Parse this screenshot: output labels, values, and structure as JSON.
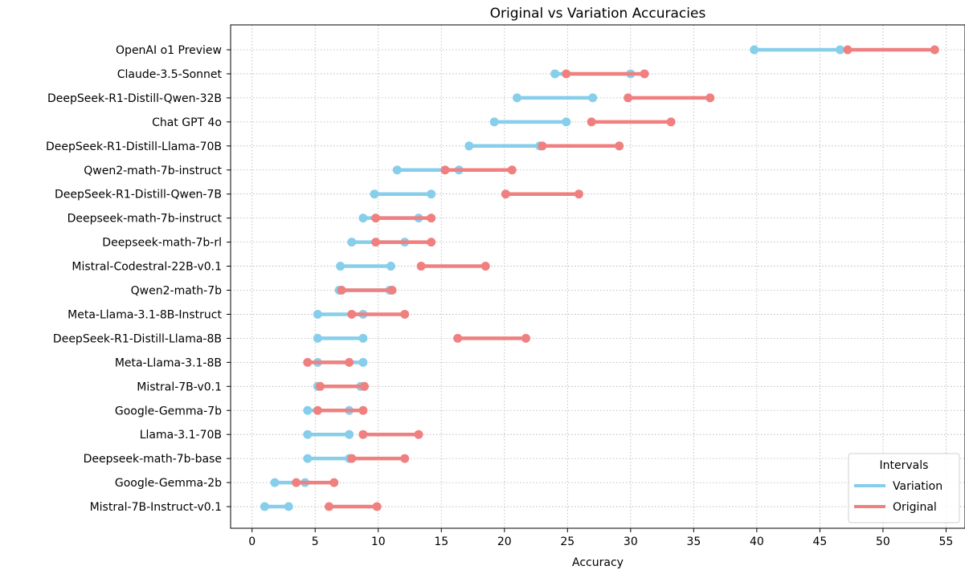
{
  "chart_data": {
    "type": "dumbbell",
    "title": "Original vs Variation Accuracies",
    "xlabel": "Accuracy",
    "ylabel": "",
    "xlim": [
      -1.7,
      56.5
    ],
    "xticks": [
      0,
      5,
      10,
      15,
      20,
      25,
      30,
      35,
      40,
      45,
      50,
      55
    ],
    "grid": true,
    "legend": {
      "title": "Intervals",
      "placement": "bottom-right",
      "entries": [
        "Variation",
        "Original"
      ]
    },
    "series": [
      {
        "name": "Variation",
        "color": "#87ceeb"
      },
      {
        "name": "Original",
        "color": "#f08080"
      }
    ],
    "categories": [
      "OpenAI o1 Preview",
      "Claude-3.5-Sonnet",
      "DeepSeek-R1-Distill-Qwen-32B",
      "Chat GPT 4o",
      "DeepSeek-R1-Distill-Llama-70B",
      "Qwen2-math-7b-instruct",
      "DeepSeek-R1-Distill-Qwen-7B",
      "Deepseek-math-7b-instruct",
      "Deepseek-math-7b-rl",
      "Mistral-Codestral-22B-v0.1",
      "Qwen2-math-7b",
      "Meta-Llama-3.1-8B-Instruct",
      "DeepSeek-R1-Distill-Llama-8B",
      "Meta-Llama-3.1-8B",
      "Mistral-7B-v0.1",
      "Google-Gemma-7b",
      "Llama-3.1-70B",
      "Deepseek-math-7b-base",
      "Google-Gemma-2b",
      "Mistral-7B-Instruct-v0.1"
    ],
    "variation": [
      [
        39.8,
        46.6
      ],
      [
        24.0,
        30.0
      ],
      [
        21.0,
        27.0
      ],
      [
        19.2,
        24.9
      ],
      [
        17.2,
        22.8
      ],
      [
        11.5,
        16.4
      ],
      [
        9.7,
        14.2
      ],
      [
        8.8,
        13.2
      ],
      [
        7.9,
        12.1
      ],
      [
        7.0,
        11.0
      ],
      [
        6.9,
        10.9
      ],
      [
        5.2,
        8.8
      ],
      [
        5.2,
        8.8
      ],
      [
        5.2,
        8.8
      ],
      [
        5.2,
        8.6
      ],
      [
        4.4,
        7.7
      ],
      [
        4.4,
        7.7
      ],
      [
        4.4,
        7.7
      ],
      [
        1.8,
        4.2
      ],
      [
        1.0,
        2.9
      ]
    ],
    "original": [
      [
        47.2,
        54.1
      ],
      [
        24.9,
        31.1
      ],
      [
        29.8,
        36.3
      ],
      [
        26.9,
        33.2
      ],
      [
        23.0,
        29.1
      ],
      [
        15.3,
        20.6
      ],
      [
        20.1,
        25.9
      ],
      [
        9.8,
        14.2
      ],
      [
        9.8,
        14.2
      ],
      [
        13.4,
        18.5
      ],
      [
        7.1,
        11.1
      ],
      [
        7.9,
        12.1
      ],
      [
        16.3,
        21.7
      ],
      [
        4.4,
        7.7
      ],
      [
        5.4,
        8.9
      ],
      [
        5.2,
        8.8
      ],
      [
        8.8,
        13.2
      ],
      [
        7.9,
        12.1
      ],
      [
        3.5,
        6.5
      ],
      [
        6.1,
        9.9
      ]
    ]
  }
}
